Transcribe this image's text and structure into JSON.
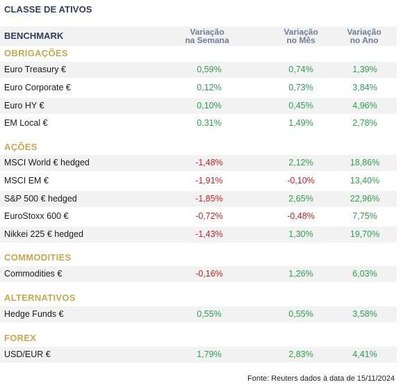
{
  "title": "CLASSE DE ATIVOS",
  "columns": {
    "benchmark": "BENCHMARK",
    "week": [
      "Variação",
      "na Semana"
    ],
    "month": [
      "Variação",
      "no Mês"
    ],
    "year": [
      "Variação",
      "no Ano"
    ]
  },
  "sections": [
    {
      "label": "OBRIGAÇÕES",
      "rows": [
        {
          "name": "Euro Treasury €",
          "week": "0,59%",
          "month": "0,74%",
          "year": "1,39%"
        },
        {
          "name": "Euro Corporate €",
          "week": "0,12%",
          "month": "0,73%",
          "year": "3,84%"
        },
        {
          "name": "Euro HY €",
          "week": "0,10%",
          "month": "0,45%",
          "year": "4,96%"
        },
        {
          "name": "EM Local €",
          "week": "0,31%",
          "month": "1,49%",
          "year": "2,78%"
        }
      ]
    },
    {
      "label": "AÇÕES",
      "rows": [
        {
          "name": "MSCI World € hedged",
          "week": "-1,48%",
          "month": "2,12%",
          "year": "18,86%"
        },
        {
          "name": "MSCI EM €",
          "week": "-1,91%",
          "month": "-0,10%",
          "year": "13,40%"
        },
        {
          "name": "S&P 500 € hedged",
          "week": "-1,85%",
          "month": "2,65%",
          "year": "22,96%"
        },
        {
          "name": "EuroStoxx 600 €",
          "week": "-0,72%",
          "month": "-0,48%",
          "year": "7,75%"
        },
        {
          "name": "Nikkei 225 € hedged",
          "week": "-1,43%",
          "month": "1,30%",
          "year": "19,70%"
        }
      ]
    },
    {
      "label": "COMMODITIES",
      "rows": [
        {
          "name": "Commodities €",
          "week": "-0,16%",
          "month": "1,26%",
          "year": "6,03%"
        }
      ]
    },
    {
      "label": "ALTERNATIVOS",
      "rows": [
        {
          "name": "Hedge Funds €",
          "week": "0,55%",
          "month": "0,55%",
          "year": "3,58%"
        }
      ]
    },
    {
      "label": "FOREX",
      "rows": [
        {
          "name": "USD/EUR €",
          "week": "1,79%",
          "month": "2,83%",
          "year": "4,41%"
        }
      ]
    }
  ],
  "footer": "Fonte: Reuters dados à data de 15/11/2024",
  "colors": {
    "positive": "#2aa14a",
    "negative": "#d0201f",
    "section": "#c8a84b",
    "header": "#2b3f5c"
  }
}
